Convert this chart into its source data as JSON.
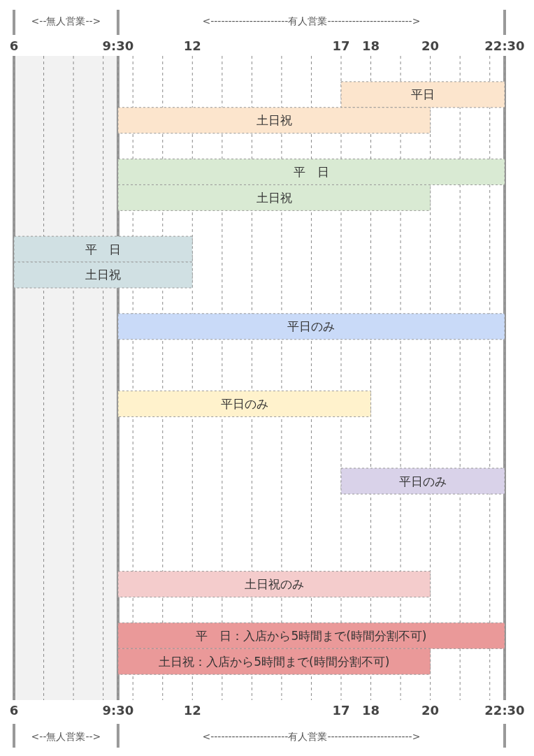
{
  "chart_data": {
    "type": "bar",
    "orientation": "horizontal",
    "categories": [
      null,
      null,
      null,
      null,
      null,
      null,
      null,
      null,
      null,
      null,
      null,
      null,
      null,
      null,
      null,
      null,
      null,
      null,
      null,
      null,
      null,
      null,
      null,
      null,
      null
    ],
    "base": [
      null,
      17,
      9.5,
      null,
      9.5,
      9.5,
      null,
      6,
      6,
      null,
      9.5,
      null,
      null,
      9.5,
      null,
      null,
      17,
      null,
      null,
      null,
      9.5,
      null,
      9.5,
      9.5,
      null
    ],
    "values": [
      null,
      5.5,
      10.5,
      null,
      13,
      10.5,
      null,
      6,
      6,
      null,
      13,
      null,
      null,
      8.5,
      null,
      null,
      5.5,
      null,
      null,
      null,
      10.5,
      null,
      13,
      10.5,
      null
    ],
    "colors": [
      null,
      "#fce5cd",
      "#fce5cd",
      null,
      "#d9ead3",
      "#d9ead3",
      null,
      "#d0e0e3",
      "#d0e0e3",
      null,
      "#c9daf8",
      null,
      null,
      "#fff2cc",
      null,
      null,
      "#d9d2e9",
      null,
      null,
      null,
      "#f4cccc",
      null,
      "#ea9999",
      "#ea9999",
      null
    ],
    "value_labels": [
      null,
      "平日",
      "土日祝",
      null,
      "平　日",
      "土日祝",
      null,
      "平　日",
      "土日祝",
      null,
      "平日のみ",
      null,
      null,
      "平日のみ",
      null,
      null,
      "平日のみ",
      null,
      null,
      null,
      "土日祝のみ",
      null,
      "平　日：入店から5時間まで(時間分割不可)",
      "土日祝：入店から5時間まで(時間分割不可)",
      null
    ],
    "xlim": [
      6,
      22.5
    ],
    "xticks": [
      6,
      {
        "value": 7,
        "label": null
      },
      {
        "value": 8,
        "label": null
      },
      {
        "value": 9,
        "label": null
      },
      {
        "value": 9.5,
        "label": "9:30"
      },
      {
        "value": 10,
        "label": null
      },
      {
        "value": 11,
        "label": null
      },
      12,
      {
        "value": 13,
        "label": null
      },
      {
        "value": 14,
        "label": null
      },
      {
        "value": 15,
        "label": null
      },
      {
        "value": 16,
        "label": null
      },
      17,
      18,
      {
        "value": 19,
        "label": null
      },
      20,
      {
        "value": 21,
        "label": null
      },
      {
        "value": 22,
        "label": null
      },
      {
        "value": 22.5,
        "label": "22:30"
      }
    ],
    "x2lim": [
      6,
      22.5
    ],
    "x2ticks": [
      6,
      {
        "value": 7,
        "label": null
      },
      {
        "value": 8,
        "label": null
      },
      {
        "value": 9,
        "label": null
      },
      {
        "value": 9.5,
        "label": "9:30"
      },
      {
        "value": 10,
        "label": null
      },
      {
        "value": 11,
        "label": null
      },
      12,
      {
        "value": 13,
        "label": null
      },
      {
        "value": 14,
        "label": null
      },
      {
        "value": 15,
        "label": null
      },
      {
        "value": 16,
        "label": null
      },
      17,
      18,
      {
        "value": 19,
        "label": null
      },
      20,
      {
        "value": 21,
        "label": null
      },
      {
        "value": 22,
        "label": null
      },
      {
        "value": 22.5,
        "label": "22:30"
      }
    ],
    "grid": "x",
    "ref_lines": [
      {
        "axis": "x",
        "value": 6,
        "color": "#999999"
      },
      {
        "axis": "x",
        "value": 9.5,
        "color": "#999999"
      },
      {
        "axis": "x",
        "value": 22.5,
        "color": "#999999"
      }
    ],
    "bands": [
      {
        "axis": "x",
        "from": 6,
        "to": 9.5,
        "color": "#f2f2f2"
      }
    ],
    "annotations": [
      "<--無人営業-->",
      "<----------------------有人営業------------------------>"
    ]
  }
}
